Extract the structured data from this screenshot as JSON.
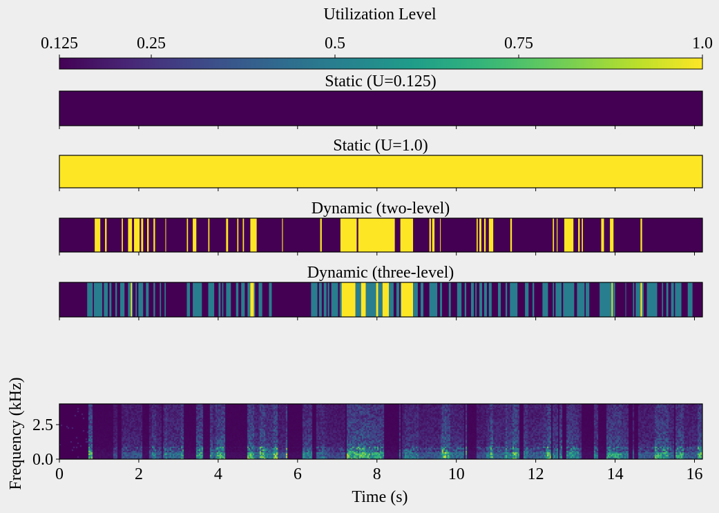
{
  "chart_data": {
    "type": "heatmap",
    "colormap": "viridis",
    "colorbar": {
      "label": "Utilization Level",
      "range": [
        0.125,
        1.0
      ],
      "ticks": [
        "0.125",
        "0.25",
        "0.5",
        "0.75",
        "1.0"
      ],
      "tick_values": [
        0.125,
        0.25,
        0.5,
        0.75,
        1.0
      ]
    },
    "xlim": [
      0,
      16.2
    ],
    "x_ticks": [
      0,
      2,
      4,
      6,
      8,
      10,
      12,
      14,
      16
    ],
    "x_tick_labels": [
      "0",
      "2",
      "4",
      "6",
      "8",
      "10",
      "12",
      "14",
      "16"
    ],
    "xlabel": "Time (s)",
    "panels": [
      {
        "title": "Static (U=0.125)",
        "base_level": 0.125,
        "segments": []
      },
      {
        "title": "Static (U=1.0)",
        "base_level": 1.0,
        "segments": []
      },
      {
        "title": "Dynamic (two-level)",
        "base_level": 0.125,
        "segments": [
          [
            0.89,
            1.03,
            1.0
          ],
          [
            1.15,
            1.19,
            1.0
          ],
          [
            1.57,
            1.6,
            1.0
          ],
          [
            1.73,
            1.83,
            1.0
          ],
          [
            1.88,
            2.02,
            1.0
          ],
          [
            2.06,
            2.11,
            1.0
          ],
          [
            2.21,
            2.25,
            1.0
          ],
          [
            2.37,
            2.41,
            1.0
          ],
          [
            2.67,
            2.68,
            1.0
          ],
          [
            3.21,
            3.24,
            1.0
          ],
          [
            3.36,
            3.45,
            1.0
          ],
          [
            3.75,
            3.78,
            1.0
          ],
          [
            4.2,
            4.25,
            1.0
          ],
          [
            4.48,
            4.51,
            1.0
          ],
          [
            4.62,
            4.65,
            1.0
          ],
          [
            4.81,
            4.97,
            1.0
          ],
          [
            5.61,
            5.63,
            1.0
          ],
          [
            6.57,
            6.61,
            1.0
          ],
          [
            7.08,
            7.49,
            1.0
          ],
          [
            7.53,
            8.45,
            1.0
          ],
          [
            8.59,
            8.91,
            1.0
          ],
          [
            9.32,
            9.36,
            1.0
          ],
          [
            9.39,
            9.45,
            1.0
          ],
          [
            9.59,
            9.6,
            1.0
          ],
          [
            10.51,
            10.54,
            1.0
          ],
          [
            10.58,
            10.63,
            1.0
          ],
          [
            10.7,
            10.74,
            1.0
          ],
          [
            10.82,
            10.93,
            1.0
          ],
          [
            11.36,
            11.4,
            1.0
          ],
          [
            12.43,
            12.46,
            1.0
          ],
          [
            12.53,
            12.55,
            1.0
          ],
          [
            12.72,
            12.95,
            1.0
          ],
          [
            13.07,
            13.11,
            1.0
          ],
          [
            13.16,
            13.19,
            1.0
          ],
          [
            13.65,
            13.72,
            1.0
          ],
          [
            13.87,
            13.96,
            1.0
          ],
          [
            14.64,
            14.68,
            1.0
          ]
        ]
      },
      {
        "title": "Dynamic (three-level)",
        "base_level": 0.125,
        "segments": [
          [
            0.7,
            0.84,
            0.5
          ],
          [
            0.87,
            1.08,
            0.5
          ],
          [
            1.12,
            1.22,
            0.5
          ],
          [
            1.26,
            1.31,
            0.5
          ],
          [
            1.41,
            1.45,
            0.5
          ],
          [
            1.53,
            1.64,
            0.5
          ],
          [
            1.73,
            1.8,
            0.5
          ],
          [
            1.8,
            1.83,
            1.0
          ],
          [
            1.83,
            1.85,
            0.5
          ],
          [
            1.92,
            1.95,
            0.5
          ],
          [
            1.99,
            2.11,
            0.5
          ],
          [
            2.18,
            2.25,
            0.5
          ],
          [
            2.37,
            2.41,
            0.5
          ],
          [
            2.53,
            2.56,
            0.5
          ],
          [
            2.65,
            2.68,
            0.5
          ],
          [
            3.21,
            3.29,
            0.5
          ],
          [
            3.36,
            3.59,
            0.5
          ],
          [
            3.75,
            3.9,
            0.5
          ],
          [
            4.01,
            4.06,
            0.5
          ],
          [
            4.1,
            4.13,
            0.5
          ],
          [
            4.2,
            4.32,
            0.5
          ],
          [
            4.45,
            4.51,
            0.5
          ],
          [
            4.58,
            4.67,
            0.5
          ],
          [
            4.74,
            4.81,
            0.5
          ],
          [
            4.81,
            4.9,
            1.0
          ],
          [
            4.9,
            4.93,
            0.5
          ],
          [
            5.02,
            5.11,
            0.5
          ],
          [
            5.28,
            5.35,
            0.5
          ],
          [
            6.34,
            6.5,
            0.5
          ],
          [
            6.54,
            6.61,
            0.5
          ],
          [
            6.66,
            6.73,
            0.5
          ],
          [
            6.76,
            6.8,
            0.5
          ],
          [
            6.85,
            7.02,
            0.5
          ],
          [
            7.06,
            7.11,
            0.5
          ],
          [
            7.11,
            7.46,
            1.0
          ],
          [
            7.46,
            7.6,
            0.5
          ],
          [
            7.6,
            7.72,
            1.0
          ],
          [
            7.72,
            7.98,
            0.5
          ],
          [
            7.98,
            8.03,
            1.0
          ],
          [
            8.03,
            8.14,
            0.5
          ],
          [
            8.14,
            8.3,
            1.0
          ],
          [
            8.3,
            8.42,
            0.5
          ],
          [
            8.49,
            8.56,
            0.5
          ],
          [
            8.59,
            8.61,
            0.5
          ],
          [
            8.61,
            8.91,
            1.0
          ],
          [
            8.91,
            9.03,
            0.5
          ],
          [
            9.1,
            9.17,
            0.5
          ],
          [
            9.32,
            9.52,
            0.5
          ],
          [
            9.59,
            9.64,
            0.5
          ],
          [
            9.81,
            9.86,
            0.5
          ],
          [
            10.02,
            10.13,
            0.5
          ],
          [
            10.21,
            10.25,
            0.5
          ],
          [
            10.37,
            10.44,
            0.5
          ],
          [
            10.48,
            10.51,
            0.5
          ],
          [
            10.58,
            10.65,
            0.5
          ],
          [
            10.7,
            10.77,
            0.5
          ],
          [
            10.82,
            10.89,
            0.5
          ],
          [
            11.05,
            11.12,
            0.5
          ],
          [
            11.24,
            11.28,
            0.5
          ],
          [
            11.35,
            11.54,
            0.5
          ],
          [
            11.73,
            11.82,
            0.5
          ],
          [
            11.92,
            11.96,
            0.5
          ],
          [
            12.17,
            12.31,
            0.5
          ],
          [
            12.43,
            12.46,
            0.5
          ],
          [
            12.5,
            12.65,
            0.5
          ],
          [
            12.69,
            12.97,
            0.5
          ],
          [
            13.04,
            13.23,
            0.5
          ],
          [
            13.26,
            13.35,
            0.5
          ],
          [
            13.61,
            13.91,
            0.5
          ],
          [
            13.91,
            13.94,
            1.0
          ],
          [
            13.94,
            14.0,
            0.5
          ],
          [
            14.26,
            14.27,
            0.5
          ],
          [
            14.45,
            14.48,
            0.5
          ],
          [
            14.52,
            14.57,
            0.5
          ],
          [
            14.57,
            14.64,
            0.5
          ],
          [
            14.64,
            14.68,
            1.0
          ],
          [
            14.68,
            14.72,
            0.5
          ],
          [
            14.8,
            15.06,
            0.5
          ],
          [
            15.18,
            15.21,
            0.5
          ],
          [
            15.29,
            15.34,
            0.5
          ],
          [
            15.41,
            15.48,
            0.5
          ],
          [
            15.51,
            15.67,
            0.5
          ],
          [
            15.83,
            15.95,
            0.5
          ]
        ]
      }
    ],
    "spectrogram": {
      "ylabel": "Frequency (kHz)",
      "ylim": [
        0,
        4.0
      ],
      "y_ticks": [
        0,
        2.5
      ],
      "y_tick_labels": [
        "0.0",
        "2.5"
      ],
      "speech_onset": 0.7
    }
  }
}
